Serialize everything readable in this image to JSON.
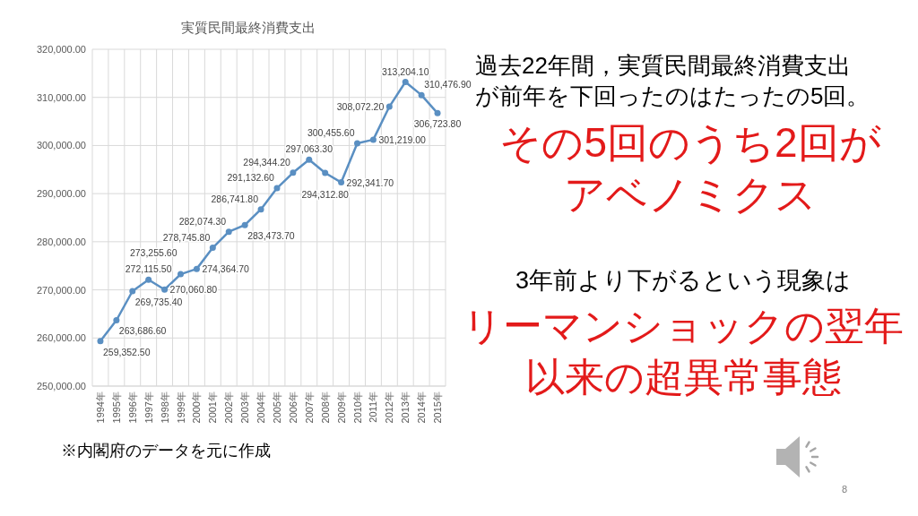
{
  "chart_data": {
    "type": "line",
    "title": "実質民間最終消費支出",
    "categories": [
      "1994年",
      "1995年",
      "1996年",
      "1997年",
      "1998年",
      "1999年",
      "2000年",
      "2001年",
      "2002年",
      "2003年",
      "2004年",
      "2005年",
      "2006年",
      "2007年",
      "2008年",
      "2009年",
      "2010年",
      "2011年",
      "2012年",
      "2013年",
      "2014年",
      "2015年"
    ],
    "series": [
      {
        "color": "#5a8fc2",
        "values": [
          259352.5,
          263686.6,
          269735.4,
          272115.5,
          270060.8,
          273255.6,
          274364.7,
          278745.8,
          282074.3,
          283473.7,
          286741.8,
          291132.6,
          294344.2,
          297063.3,
          294312.8,
          292341.7,
          300455.6,
          301219.0,
          308072.2,
          313204.1,
          310476.9,
          306723.8
        ],
        "value_labels": [
          "259,352.50",
          "263,686.60",
          "269,735.40",
          "272,115.50",
          "270,060.80",
          "273,255.60",
          "274,364.70",
          "278,745.80",
          "282,074.30",
          "283,473.70",
          "286,741.80",
          "291,132.60",
          "294,344.20",
          "297,063.30",
          "294,312.80",
          "292,341.70",
          "300,455.60",
          "301,219.00",
          "308,072.20",
          "313,204.10",
          "310,476.90",
          "306,723.80"
        ]
      }
    ],
    "ylim": [
      250000,
      320000
    ],
    "yticks": [
      {
        "value": 250000,
        "label": "250,000.00"
      },
      {
        "value": 260000,
        "label": "260,000.00"
      },
      {
        "value": 270000,
        "label": "270,000.00"
      },
      {
        "value": 280000,
        "label": "280,000.00"
      },
      {
        "value": 290000,
        "label": "290,000.00"
      },
      {
        "value": 300000,
        "label": "300,000.00"
      },
      {
        "value": 310000,
        "label": "310,000.00"
      },
      {
        "value": 320000,
        "label": "320,000.00"
      }
    ],
    "grid": true,
    "marker": "circle",
    "line_style": "solid",
    "annotations": [
      "過去22年間，実質民間最終消費支出が前年を下回ったのはたったの5回。",
      "その5回のうち2回がアベノミクス",
      "3年前より下がるという現象は",
      "リーマンショックの翌年以来の超異常事態",
      "※内閣府のデータを元に作成",
      "8"
    ]
  }
}
